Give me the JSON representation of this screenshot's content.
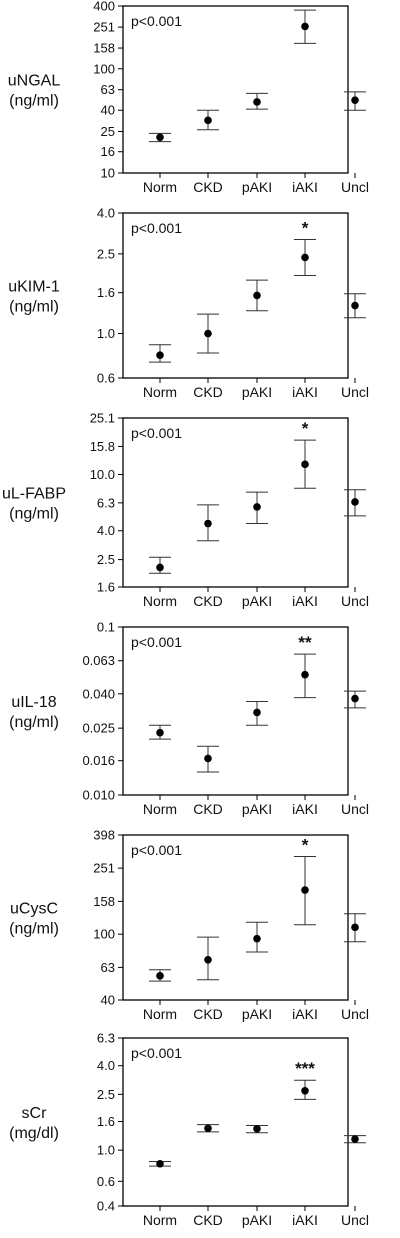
{
  "chart_data": [
    {
      "type": "scatter",
      "ylabel": [
        "uNGAL",
        "(ng/ml)"
      ],
      "yscale": "log",
      "ylim": [
        10,
        400
      ],
      "yticks": [
        "400",
        "251",
        "158",
        "100",
        "63",
        "40",
        "25",
        "16",
        "10"
      ],
      "categories": [
        "Norm",
        "CKD",
        "pAKI",
        "iAKI",
        "Uncl"
      ],
      "pvalue": "p<0.001",
      "points": [
        {
          "x": "Norm",
          "y": 22,
          "low": 20,
          "high": 24,
          "sig": ""
        },
        {
          "x": "CKD",
          "y": 32,
          "low": 26,
          "high": 40,
          "sig": ""
        },
        {
          "x": "pAKI",
          "y": 48,
          "low": 41,
          "high": 58,
          "sig": ""
        },
        {
          "x": "iAKI",
          "y": 255,
          "low": 175,
          "high": 365,
          "sig": "***"
        },
        {
          "x": "Uncl",
          "y": 50,
          "low": 40,
          "high": 60,
          "sig": ""
        }
      ]
    },
    {
      "type": "scatter",
      "ylabel": [
        "uKIM-1",
        "(ng/ml)"
      ],
      "yscale": "log",
      "ylim": [
        0.6,
        4.0
      ],
      "yticks": [
        "4.0",
        "2.5",
        "1.6",
        "1.0",
        "0.6"
      ],
      "categories": [
        "Norm",
        "CKD",
        "pAKI",
        "iAKI",
        "Uncl"
      ],
      "pvalue": "p<0.001",
      "points": [
        {
          "x": "Norm",
          "y": 0.78,
          "low": 0.72,
          "high": 0.88,
          "sig": ""
        },
        {
          "x": "CKD",
          "y": 1.0,
          "low": 0.8,
          "high": 1.25,
          "sig": ""
        },
        {
          "x": "pAKI",
          "y": 1.55,
          "low": 1.3,
          "high": 1.85,
          "sig": ""
        },
        {
          "x": "iAKI",
          "y": 2.4,
          "low": 1.95,
          "high": 2.95,
          "sig": "*"
        },
        {
          "x": "Uncl",
          "y": 1.38,
          "low": 1.2,
          "high": 1.58,
          "sig": ""
        }
      ]
    },
    {
      "type": "scatter",
      "ylabel": [
        "uL-FABP",
        "(ng/ml)"
      ],
      "yscale": "log",
      "ylim": [
        1.6,
        25.1
      ],
      "yticks": [
        "25.1",
        "15.8",
        "10.0",
        "6.3",
        "4.0",
        "2.5",
        "1.6"
      ],
      "categories": [
        "Norm",
        "CKD",
        "pAKI",
        "iAKI",
        "Uncl"
      ],
      "pvalue": "p<0.001",
      "points": [
        {
          "x": "Norm",
          "y": 2.2,
          "low": 2.0,
          "high": 2.6,
          "sig": ""
        },
        {
          "x": "CKD",
          "y": 4.5,
          "low": 3.4,
          "high": 6.1,
          "sig": ""
        },
        {
          "x": "pAKI",
          "y": 5.9,
          "low": 4.5,
          "high": 7.5,
          "sig": ""
        },
        {
          "x": "iAKI",
          "y": 11.8,
          "low": 8.0,
          "high": 17.5,
          "sig": "*"
        },
        {
          "x": "Uncl",
          "y": 6.4,
          "low": 5.1,
          "high": 7.8,
          "sig": ""
        }
      ]
    },
    {
      "type": "scatter",
      "ylabel": [
        "uIL-18",
        "(ng/ml)"
      ],
      "yscale": "log",
      "ylim": [
        0.01,
        0.1
      ],
      "yticks": [
        "0.1",
        "0.063",
        "0.040",
        "0.025",
        "0.016",
        "0.010"
      ],
      "categories": [
        "Norm",
        "CKD",
        "pAKI",
        "iAKI",
        "Uncl"
      ],
      "pvalue": "p<0.001",
      "points": [
        {
          "x": "Norm",
          "y": 0.0235,
          "low": 0.0215,
          "high": 0.026,
          "sig": ""
        },
        {
          "x": "CKD",
          "y": 0.0165,
          "low": 0.0137,
          "high": 0.0195,
          "sig": ""
        },
        {
          "x": "pAKI",
          "y": 0.031,
          "low": 0.026,
          "high": 0.036,
          "sig": ""
        },
        {
          "x": "iAKI",
          "y": 0.052,
          "low": 0.038,
          "high": 0.069,
          "sig": "**"
        },
        {
          "x": "Uncl",
          "y": 0.0375,
          "low": 0.033,
          "high": 0.0415,
          "sig": ""
        }
      ]
    },
    {
      "type": "scatter",
      "ylabel": [
        "uCysC",
        "(ng/ml)"
      ],
      "yscale": "log",
      "ylim": [
        40,
        398
      ],
      "yticks": [
        "398",
        "251",
        "158",
        "100",
        "63",
        "40"
      ],
      "categories": [
        "Norm",
        "CKD",
        "pAKI",
        "iAKI",
        "Uncl"
      ],
      "pvalue": "p<0.001",
      "points": [
        {
          "x": "Norm",
          "y": 56,
          "low": 52,
          "high": 61,
          "sig": ""
        },
        {
          "x": "CKD",
          "y": 70,
          "low": 53,
          "high": 96,
          "sig": ""
        },
        {
          "x": "pAKI",
          "y": 94,
          "low": 78,
          "high": 118,
          "sig": ""
        },
        {
          "x": "iAKI",
          "y": 185,
          "low": 114,
          "high": 295,
          "sig": "*"
        },
        {
          "x": "Uncl",
          "y": 110,
          "low": 90,
          "high": 133,
          "sig": ""
        }
      ]
    },
    {
      "type": "scatter",
      "ylabel": [
        "sCr",
        "(mg/dl)"
      ],
      "yscale": "log",
      "ylim": [
        0.4,
        6.3
      ],
      "yticks": [
        "6.3",
        "4.0",
        "2.5",
        "1.6",
        "1.0",
        "0.6",
        "0.4"
      ],
      "categories": [
        "Norm",
        "CKD",
        "pAKI",
        "iAKI",
        "Uncl"
      ],
      "pvalue": "p<0.001",
      "points": [
        {
          "x": "Norm",
          "y": 0.8,
          "low": 0.77,
          "high": 0.83,
          "sig": ""
        },
        {
          "x": "CKD",
          "y": 1.43,
          "low": 1.35,
          "high": 1.52,
          "sig": ""
        },
        {
          "x": "pAKI",
          "y": 1.42,
          "low": 1.33,
          "high": 1.5,
          "sig": ""
        },
        {
          "x": "iAKI",
          "y": 2.65,
          "low": 2.3,
          "high": 3.15,
          "sig": "***"
        },
        {
          "x": "Uncl",
          "y": 1.2,
          "low": 1.13,
          "high": 1.27,
          "sig": ""
        }
      ]
    }
  ]
}
